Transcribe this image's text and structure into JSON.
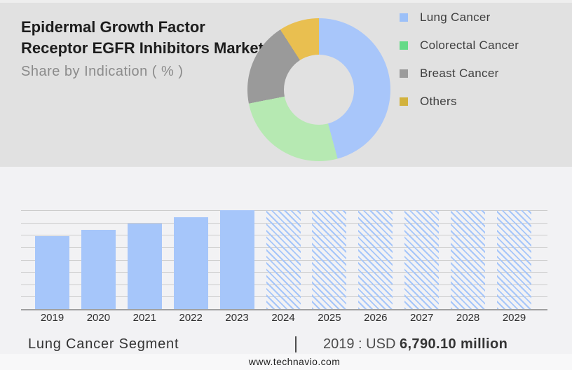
{
  "header": {
    "title_line1": "Epidermal Growth Factor",
    "title_line2": "Receptor EGFR Inhibitors Market",
    "subtitle": "Share by Indication ( % )"
  },
  "legend": {
    "items": [
      {
        "label": "Lung Cancer",
        "swatch_color": "#9cc0f8"
      },
      {
        "label": "Colorectal Cancer",
        "swatch_color": "#65da87"
      },
      {
        "label": "Breast Cancer",
        "swatch_color": "#9b9b9b"
      },
      {
        "label": "Others",
        "swatch_color": "#d2b23d"
      }
    ]
  },
  "chart_data": [
    {
      "type": "pie",
      "subtype": "donut",
      "title": "Share by Indication ( % )",
      "labels": [
        "Lung Cancer",
        "Colorectal Cancer",
        "Breast Cancer",
        "Others"
      ],
      "values_pct": [
        45.8,
        26.1,
        19.0,
        9.1
      ],
      "colors": [
        "#a8c6fa",
        "#b6e9b2",
        "#9a9a9a",
        "#e9bf50"
      ],
      "hole_color": "#e1e1e1",
      "legend_position": "right",
      "start_angle_deg": 0,
      "direction": "clockwise"
    },
    {
      "type": "bar",
      "categories": [
        "2019",
        "2020",
        "2021",
        "2022",
        "2023",
        "2024",
        "2025",
        "2026",
        "2027",
        "2028",
        "2029"
      ],
      "relative_heights": [
        0.74,
        0.8,
        0.865,
        0.93,
        1.0,
        1.0,
        1.0,
        1.0,
        1.0,
        1.0,
        1.0
      ],
      "bar_styles": [
        "solid",
        "solid",
        "solid",
        "solid",
        "solid",
        "hatched",
        "hatched",
        "hatched",
        "hatched",
        "hatched",
        "hatched"
      ],
      "bar_color": "#a6c6fa",
      "grid_color": "#cbcbcb",
      "axis_color": "#a0a0a0",
      "gridlines": 9,
      "y_axis_labels": false,
      "anchor_label": "2019 : USD 6,790.10 million"
    }
  ],
  "caption": {
    "segment_label": "Lung Cancer Segment",
    "separator": "|",
    "value_prefix": "2019 : USD",
    "value_bold": "6,790.10 million"
  },
  "footer": {
    "url": "www.technavio.com"
  },
  "theme": {
    "header_bg": "#e1e1e1",
    "body_bg": "#f2f2f4",
    "footer_bg": "#f8f8f9",
    "title_color": "#1d1d1d",
    "subtitle_color": "#8b8b8b"
  }
}
